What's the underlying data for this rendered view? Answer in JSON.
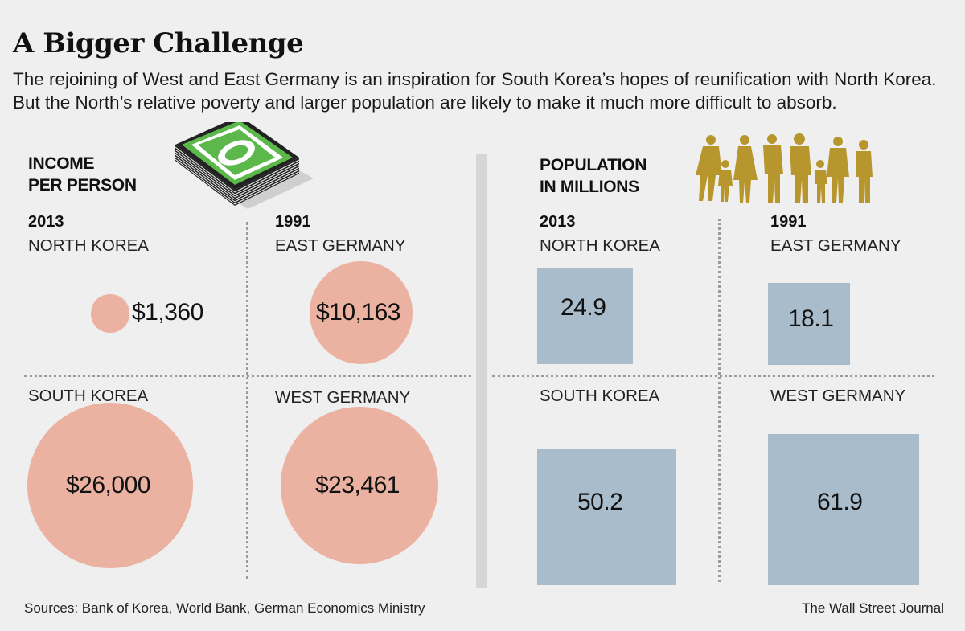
{
  "title": "A Bigger Challenge",
  "subtitle": "The rejoining of West and East Germany is an inspiration for South Korea’s hopes of reunification with North Korea. But the North’s relative poverty and larger population are likely to make it much more difficult to absorb.",
  "income": {
    "heading_line1": "INCOME",
    "heading_line2": "PER PERSON",
    "year_left": "2013",
    "year_right": "1991",
    "icon": "money-stack-icon",
    "items": [
      {
        "country": "NORTH KOREA",
        "label": "$1,360",
        "value": 1360
      },
      {
        "country": "EAST GERMANY",
        "label": "$10,163",
        "value": 10163
      },
      {
        "country": "SOUTH KOREA",
        "label": "$26,000",
        "value": 26000
      },
      {
        "country": "WEST GERMANY",
        "label": "$23,461",
        "value": 23461
      }
    ]
  },
  "population": {
    "heading_line1": "POPULATION",
    "heading_line2": "IN MILLIONS",
    "year_left": "2013",
    "year_right": "1991",
    "icon": "people-silhouettes-icon",
    "items": [
      {
        "country": "NORTH KOREA",
        "label": "24.9",
        "value": 24.9
      },
      {
        "country": "EAST GERMANY",
        "label": "18.1",
        "value": 18.1
      },
      {
        "country": "SOUTH KOREA",
        "label": "50.2",
        "value": 50.2
      },
      {
        "country": "WEST GERMANY",
        "label": "61.9",
        "value": 61.9
      }
    ]
  },
  "colors": {
    "circle": "#ebb2a2",
    "square": "#a9bccb",
    "money": "#5cb84a",
    "people": "#b8962e"
  },
  "footer": {
    "sources": "Sources: Bank of Korea, World Bank, German Economics Ministry",
    "credit": "The Wall Street Journal"
  },
  "chart_data": [
    {
      "type": "bubble",
      "title": "INCOME PER PERSON",
      "categories": [
        "North Korea (2013)",
        "East Germany (1991)",
        "South Korea (2013)",
        "West Germany (1991)"
      ],
      "values": [
        1360,
        10163,
        26000,
        23461
      ],
      "unit": "USD"
    },
    {
      "type": "area-square",
      "title": "POPULATION IN MILLIONS",
      "categories": [
        "North Korea (2013)",
        "East Germany (1991)",
        "South Korea (2013)",
        "West Germany (1991)"
      ],
      "values": [
        24.9,
        18.1,
        50.2,
        61.9
      ],
      "unit": "millions"
    }
  ]
}
